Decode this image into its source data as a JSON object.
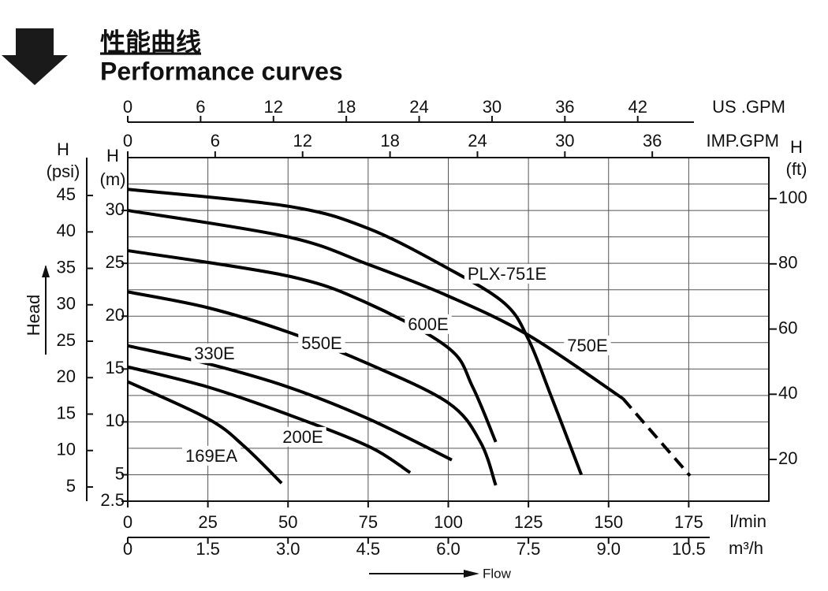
{
  "header": {
    "title_cn": "性能曲线",
    "title_en": "Performance curves"
  },
  "chart_data": {
    "type": "line",
    "xlabel": "l/min",
    "xlim": [
      0,
      200
    ],
    "xticks": [
      0,
      25,
      50,
      75,
      100,
      125,
      150,
      175
    ],
    "ylabel": "H (m)",
    "ylim": [
      2.5,
      35
    ],
    "yticks": [
      2.5,
      5,
      10,
      15,
      20,
      25,
      30
    ],
    "ygrid": [
      5,
      7.5,
      10,
      12.5,
      15,
      17.5,
      20,
      22.5,
      25,
      27.5,
      30,
      32.5
    ],
    "grid": true,
    "psi_axis": {
      "label": "H (psi)",
      "lim": [
        3.05,
        50.2
      ],
      "ticks": [
        5,
        10,
        15,
        20,
        25,
        30,
        35,
        40,
        45
      ]
    },
    "ft_axis": {
      "label": "H (ft)",
      "lim": [
        7.2,
        112.6
      ],
      "ticks": [
        20,
        40,
        60,
        80,
        100
      ]
    },
    "us_gpm_axis": {
      "label": "US .GPM",
      "lim": [
        0,
        52.8
      ],
      "ticks": [
        0,
        6,
        12,
        18,
        24,
        30,
        36,
        42
      ]
    },
    "imp_gpm_axis": {
      "label": "IMP.GPM",
      "lim": [
        0,
        44.0
      ],
      "ticks": [
        0,
        6,
        12,
        18,
        24,
        30,
        36
      ]
    },
    "m3h_axis": {
      "label": "m³/h",
      "lim": [
        0,
        12.0
      ],
      "ticks": [
        0,
        1.5,
        {
          "value": 3,
          "label": "3.0"
        },
        4.5,
        {
          "value": 6,
          "label": "6.0"
        },
        7.5,
        {
          "value": 9,
          "label": "9.0"
        },
        10.5
      ]
    },
    "head_label": "Head",
    "flow_label": "Flow",
    "series": [
      {
        "name": "PLX-751E",
        "color": "#000000",
        "x": [
          0,
          50,
          75,
          100,
          117.6,
          125,
          132,
          141.5
        ],
        "values": [
          32.0,
          30.4,
          28.3,
          24.5,
          21.2,
          17.8,
          12.5,
          5.0
        ]
      },
      {
        "name": "750E",
        "color": "#000000",
        "x": [
          0,
          50,
          75,
          100,
          125,
          154.5
        ],
        "values": [
          30.0,
          27.5,
          24.9,
          21.9,
          18.2,
          12.2
        ]
      },
      {
        "color": "#000000",
        "line_style": "dashed",
        "x": [
          154.5,
          175.4
        ],
        "values": [
          12.2,
          4.9
        ]
      },
      {
        "name": "600E",
        "color": "#000000",
        "x": [
          0,
          50,
          75,
          100,
          107.6,
          114.8
        ],
        "values": [
          26.2,
          23.8,
          21.2,
          17.0,
          13.3,
          8.1
        ]
      },
      {
        "name": "550E",
        "color": "#000000",
        "x": [
          0,
          25,
          50,
          75,
          100,
          110,
          114.8
        ],
        "values": [
          22.3,
          20.8,
          18.5,
          15.5,
          11.8,
          8.1,
          4.0
        ]
      },
      {
        "name": "330E",
        "color": "#000000",
        "x": [
          0,
          25,
          50,
          75,
          101.1
        ],
        "values": [
          17.2,
          15.5,
          13.3,
          10.3,
          6.4
        ]
      },
      {
        "name": "200E",
        "color": "#000000",
        "x": [
          0,
          25,
          50,
          75,
          88.1
        ],
        "values": [
          15.2,
          13.3,
          10.7,
          7.7,
          5.2
        ]
      },
      {
        "name": "169EA",
        "color": "#000000",
        "x": [
          0,
          25,
          36.3,
          48
        ],
        "values": [
          13.8,
          10.3,
          7.7,
          4.2
        ]
      }
    ]
  }
}
